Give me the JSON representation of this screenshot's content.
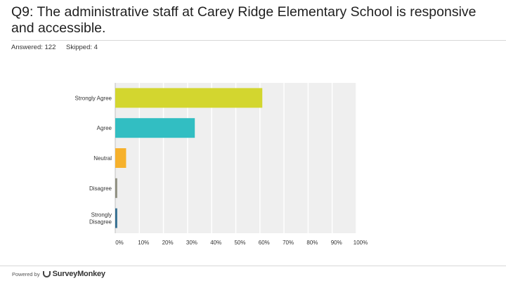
{
  "question": "Q9: The administrative staff at Carey Ridge Elementary School is responsive and accessible.",
  "answered": "Answered: 122",
  "skipped": "Skipped: 4",
  "footer": {
    "powered_by": "Powered by",
    "brand": "SurveyMonkey"
  },
  "chart_data": {
    "type": "bar",
    "orientation": "horizontal",
    "categories": [
      "Strongly Agree",
      "Agree",
      "Neutral",
      "Disagree",
      "Strongly Disagree"
    ],
    "values": [
      61,
      33,
      4.5,
      0.8,
      0.8
    ],
    "colors": [
      "#d3d62f",
      "#32bec2",
      "#f6b12c",
      "#8c8c7c",
      "#2e6a8e"
    ],
    "xlim": [
      0,
      100
    ],
    "ticks": [
      "0%",
      "10%",
      "20%",
      "30%",
      "40%",
      "50%",
      "60%",
      "70%",
      "80%",
      "90%",
      "100%"
    ],
    "grid": true,
    "plot_background": "#efefef"
  }
}
